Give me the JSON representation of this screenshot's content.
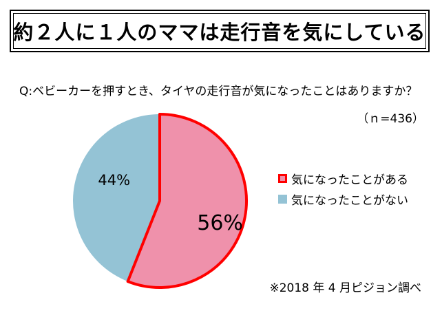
{
  "title": "約２人に１人のママは走行音を気にしている",
  "question": "Q:ベビーカーを押すとき、タイヤの走行音が気になったことはありますか？",
  "sample_size": "（ｎ=436）",
  "source_note": "※2018 年 4 月ピジョン調べ",
  "colors": {
    "slice_1": "#ef91ab",
    "slice_2": "#94c3d5",
    "highlight_border": "#ff0000"
  },
  "chart_data": {
    "type": "pie",
    "title": "約２人に１人のママは走行音を気にしている",
    "subtitle": "Q:ベビーカーを押すとき、タイヤの走行音が気になったことはありますか？",
    "categories": [
      "気になったことがある",
      "気になったことがない"
    ],
    "values": [
      56,
      44
    ],
    "labels": [
      "56%",
      "44%"
    ],
    "legend_placement": "right"
  }
}
